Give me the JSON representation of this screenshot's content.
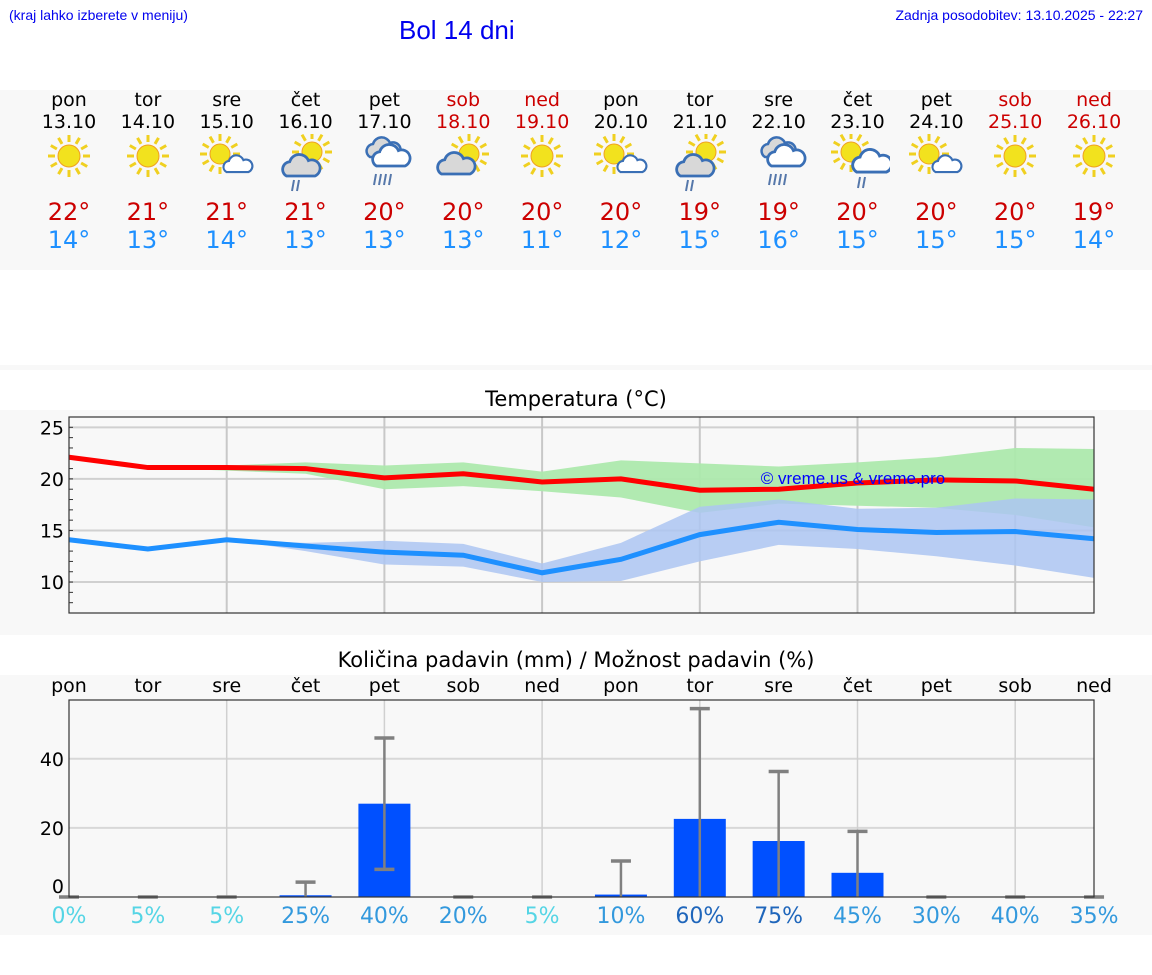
{
  "header": {
    "hint": "(kraj lahko izberete v meniju)",
    "title": "Bol 14 dni",
    "updated": "Zadnja posodobitev: 13.10.2025 - 22:27"
  },
  "days": [
    {
      "name": "pon",
      "date": "13.10",
      "icon": "sunny",
      "max": "22°",
      "min": "14°",
      "weekend": false
    },
    {
      "name": "tor",
      "date": "14.10",
      "icon": "sunny",
      "max": "21°",
      "min": "13°",
      "weekend": false
    },
    {
      "name": "sre",
      "date": "15.10",
      "icon": "sun-small-cloud",
      "max": "21°",
      "min": "14°",
      "weekend": false
    },
    {
      "name": "čet",
      "date": "16.10",
      "icon": "sun-cloud-rain",
      "max": "21°",
      "min": "13°",
      "weekend": false
    },
    {
      "name": "pet",
      "date": "17.10",
      "icon": "cloud-rain",
      "max": "20°",
      "min": "13°",
      "weekend": false
    },
    {
      "name": "sob",
      "date": "18.10",
      "icon": "sun-cloud",
      "max": "20°",
      "min": "13°",
      "weekend": true
    },
    {
      "name": "ned",
      "date": "19.10",
      "icon": "sunny",
      "max": "20°",
      "min": "11°",
      "weekend": true
    },
    {
      "name": "pon",
      "date": "20.10",
      "icon": "sun-small-cloud",
      "max": "20°",
      "min": "12°",
      "weekend": false
    },
    {
      "name": "tor",
      "date": "21.10",
      "icon": "sun-cloud-rain",
      "max": "19°",
      "min": "15°",
      "weekend": false
    },
    {
      "name": "sre",
      "date": "22.10",
      "icon": "cloud-rain",
      "max": "19°",
      "min": "16°",
      "weekend": false
    },
    {
      "name": "čet",
      "date": "23.10",
      "icon": "sun-white-cloud-rain",
      "max": "20°",
      "min": "15°",
      "weekend": false
    },
    {
      "name": "pet",
      "date": "24.10",
      "icon": "sun-small-cloud",
      "max": "20°",
      "min": "15°",
      "weekend": false
    },
    {
      "name": "sob",
      "date": "25.10",
      "icon": "sunny",
      "max": "20°",
      "min": "15°",
      "weekend": true
    },
    {
      "name": "ned",
      "date": "26.10",
      "icon": "sunny",
      "max": "19°",
      "min": "14°",
      "weekend": true
    }
  ],
  "colors": {
    "max": "#ff0000",
    "min": "#1e90ff",
    "max_band": "#ade9ad",
    "min_band": "#adc6f2",
    "bar": "#0050ff",
    "err": "#808080",
    "pct_low": "#55d5e5",
    "pct_mid": "#3399dd",
    "pct_high": "#1f66bb"
  },
  "chart_data": [
    {
      "type": "line",
      "title": "Temperatura (°C)",
      "watermark": "© vreme.us & vreme.pro",
      "ylim": [
        7,
        26
      ],
      "yticks": [
        10,
        15,
        20,
        25
      ],
      "grid": true,
      "x": [
        "13.10",
        "14.10",
        "15.10",
        "16.10",
        "17.10",
        "18.10",
        "19.10",
        "20.10",
        "21.10",
        "22.10",
        "23.10",
        "24.10",
        "25.10",
        "26.10"
      ],
      "series": [
        {
          "name": "max",
          "values": [
            22.1,
            21.1,
            21.1,
            21.0,
            20.1,
            20.5,
            19.7,
            20.0,
            18.9,
            19.0,
            19.6,
            19.9,
            19.8,
            19.0
          ],
          "band_hi": [
            22.1,
            21.1,
            21.3,
            21.6,
            21.3,
            21.6,
            20.7,
            21.8,
            21.5,
            21.2,
            21.6,
            22.1,
            23.0,
            22.9
          ],
          "band_lo": [
            22.1,
            21.1,
            20.8,
            20.5,
            19.0,
            19.3,
            18.8,
            18.2,
            16.7,
            17.6,
            17.4,
            17.2,
            16.5,
            15.3
          ]
        },
        {
          "name": "min",
          "values": [
            14.1,
            13.2,
            14.1,
            13.5,
            12.9,
            12.6,
            10.9,
            12.2,
            14.6,
            15.8,
            15.1,
            14.8,
            14.9,
            14.2
          ],
          "band_hi": [
            14.1,
            13.2,
            14.1,
            13.8,
            14.0,
            13.7,
            11.8,
            13.8,
            17.3,
            18.0,
            17.1,
            17.2,
            18.1,
            18.0
          ],
          "band_lo": [
            14.1,
            13.2,
            14.1,
            13.0,
            11.7,
            11.5,
            10.0,
            10.1,
            12.0,
            13.6,
            13.2,
            12.5,
            11.6,
            10.4
          ]
        }
      ]
    },
    {
      "type": "bar",
      "title": "Količina padavin (mm) / Možnost padavin (%)",
      "ylim": [
        0,
        57
      ],
      "yticks": [
        0,
        20,
        40
      ],
      "grid": true,
      "categories": [
        "pon",
        "tor",
        "sre",
        "čet",
        "pet",
        "sob",
        "ned",
        "pon",
        "tor",
        "sre",
        "čet",
        "pet",
        "sob",
        "ned"
      ],
      "values": [
        0,
        0,
        0,
        0.5,
        27,
        0,
        0,
        0.7,
        22.6,
        16.2,
        7,
        0,
        0,
        0
      ],
      "err_lo": [
        0,
        0,
        0,
        0,
        8,
        0,
        0,
        0,
        0,
        0,
        0,
        0,
        0,
        0
      ],
      "err_hi": [
        0,
        0,
        0,
        4.3,
        46,
        0,
        0,
        10.4,
        54.5,
        36.3,
        19,
        0,
        0,
        0
      ],
      "probability": [
        "0%",
        "5%",
        "5%",
        "25%",
        "40%",
        "20%",
        "5%",
        "10%",
        "60%",
        "75%",
        "45%",
        "30%",
        "40%",
        "35%"
      ]
    }
  ]
}
